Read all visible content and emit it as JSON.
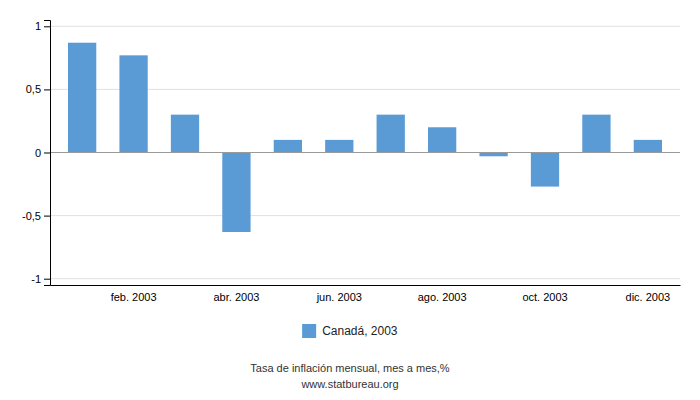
{
  "chart_data": {
    "type": "bar",
    "categories": [
      null,
      "feb. 2003",
      null,
      "abr. 2003",
      null,
      "jun. 2003",
      null,
      "ago. 2003",
      null,
      "oct. 2003",
      null,
      "dic. 2003"
    ],
    "series": [
      {
        "name": "Canadá, 2003",
        "color": "#5B9BD5",
        "values": [
          0.87,
          0.77,
          0.3,
          -0.63,
          0.1,
          0.1,
          0.3,
          0.2,
          -0.03,
          -0.27,
          0.3,
          0.1
        ]
      }
    ],
    "ylim": [
      -1.05,
      1.05
    ],
    "yticks": [
      -1,
      {
        "value": -0.5,
        "label": "-0,5"
      },
      0,
      {
        "value": 0.5,
        "label": "0,5"
      },
      1
    ],
    "grid": true,
    "legend": "bottom",
    "annotations": [
      "Tasa de inflación mensual, mes a mes,%",
      "www.statbureau.org"
    ]
  }
}
